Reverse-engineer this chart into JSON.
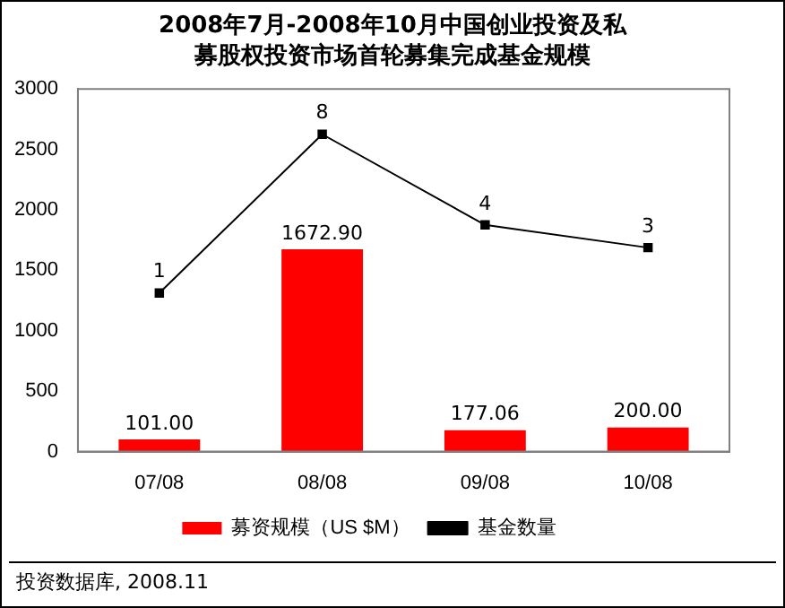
{
  "chart_data": {
    "type": "bar",
    "title": "2008年7月-2008年10月中国创业投资及私募股权投资市场首轮募集完成基金规模",
    "categories": [
      "07/08",
      "08/08",
      "09/08",
      "10/08"
    ],
    "series": [
      {
        "name": "募资规模（US $M）",
        "color": "#ff0000",
        "values": [
          101.0,
          1672.9,
          177.06,
          200.0
        ],
        "value_labels": [
          "101.00",
          "1672.90",
          "177.06",
          "200.00"
        ]
      },
      {
        "name": "基金数量",
        "type": "line",
        "color": "#000000",
        "axis": "y2",
        "values": [
          1,
          8,
          4,
          3
        ],
        "value_labels": [
          "1",
          "8",
          "4",
          "3"
        ]
      }
    ],
    "ylim": [
      0,
      3000
    ],
    "yticks": [
      0,
      500,
      1000,
      1500,
      2000,
      2500,
      3000
    ],
    "y2lim": [
      -6,
      10
    ],
    "grid": false,
    "legend": "bottom",
    "marker": "square",
    "line_style": "solid",
    "annotations": [
      "投资数据库, 2008.11"
    ]
  }
}
